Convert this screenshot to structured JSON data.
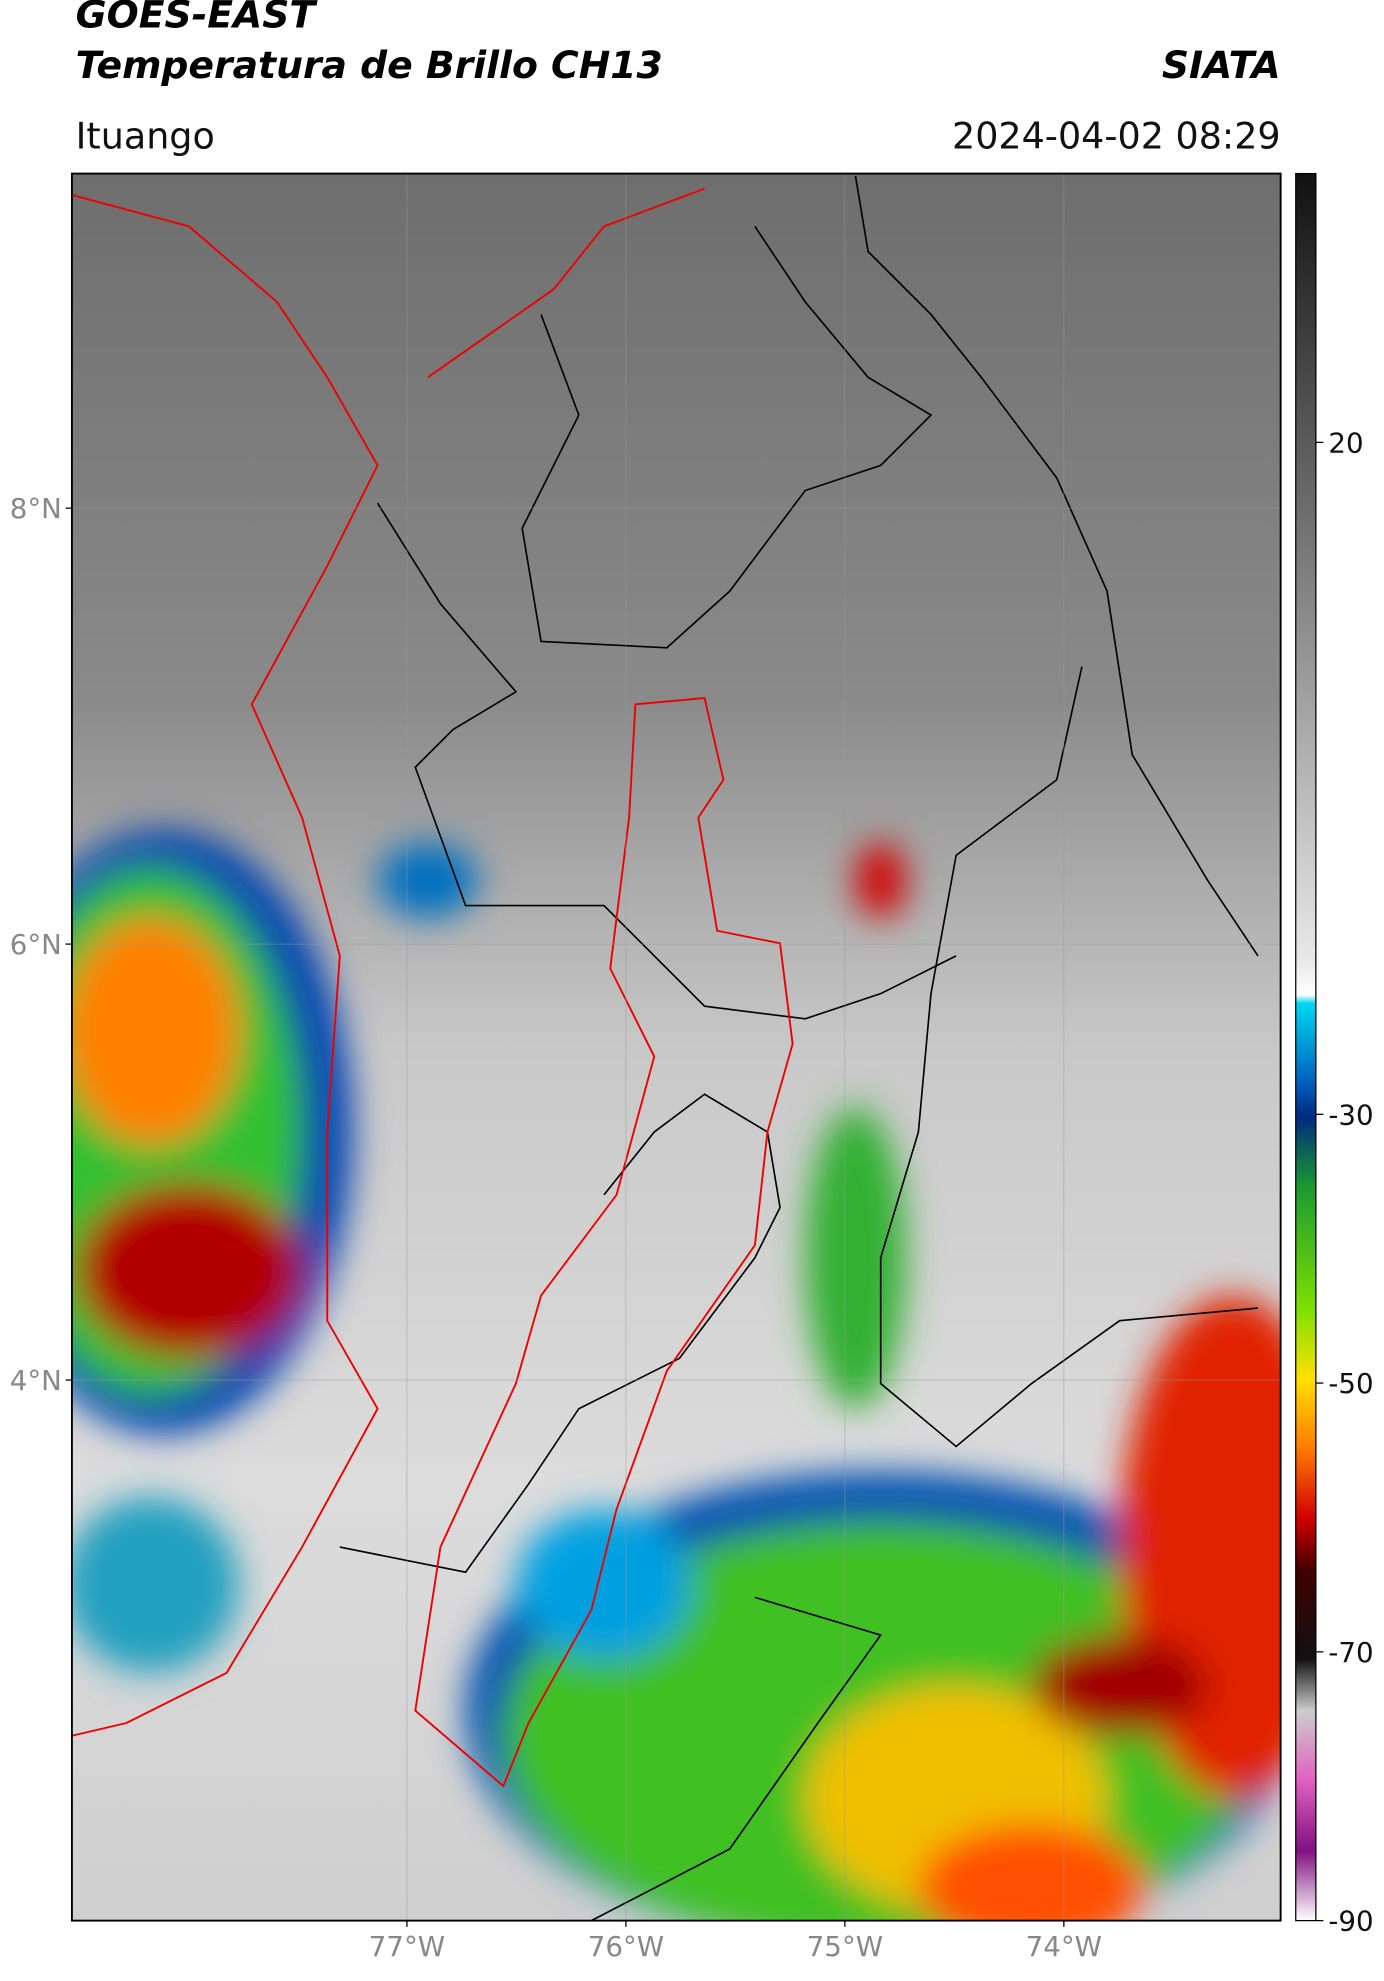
{
  "header": {
    "title_line1": "GOES-EAST",
    "title_line2": "Temperatura de Brillo CH13",
    "organization": "SIATA",
    "region": "Ituango",
    "datetime": "2024-04-02 08:29"
  },
  "map": {
    "lat_range": [
      1.52,
      9.535
    ],
    "lon_range": [
      -78.53,
      -73.01
    ],
    "lat_ticks": [
      {
        "value": 8,
        "label": "8°N"
      },
      {
        "value": 6,
        "label": "6°N"
      },
      {
        "value": 4,
        "label": "4°N"
      }
    ],
    "lon_ticks": [
      {
        "value": -77,
        "label": "77°W"
      },
      {
        "value": -76,
        "label": "76°W"
      },
      {
        "value": -75,
        "label": "75°W"
      },
      {
        "value": -74,
        "label": "74°W"
      }
    ]
  },
  "colorbar": {
    "range": [
      -90,
      40
    ],
    "ticks": [
      20,
      -30,
      -50,
      -70,
      -90
    ]
  }
}
